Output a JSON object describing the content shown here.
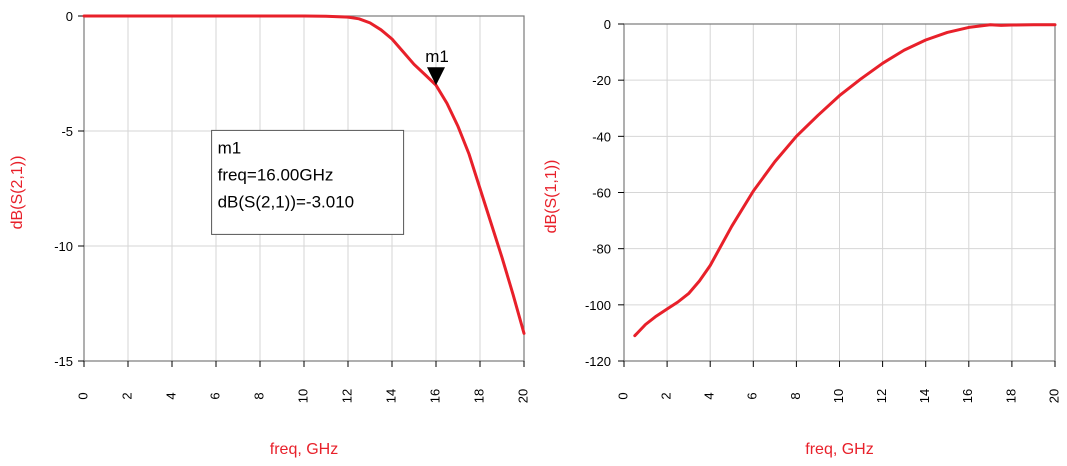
{
  "colors": {
    "trace": "#e8202a",
    "axis_title": "#e8202a",
    "grid": "#d6d6d6",
    "frame": "#7a7a7a",
    "marker": "#000000"
  },
  "chart_data": [
    {
      "type": "line",
      "xlabel": "freq, GHz",
      "ylabel": "dB(S(2,1))",
      "xlim": [
        0,
        20
      ],
      "ylim": [
        -15,
        0
      ],
      "xticks": [
        0,
        2,
        4,
        6,
        8,
        10,
        12,
        14,
        16,
        18,
        20
      ],
      "yticks": [
        0,
        -5,
        -10,
        -15
      ],
      "grid": true,
      "series": [
        {
          "x": [
            0,
            2,
            4,
            6,
            8,
            10,
            11,
            12,
            12.5,
            13,
            13.5,
            14,
            14.5,
            15,
            15.5,
            16,
            16.5,
            17,
            17.5,
            18,
            18.5,
            19,
            19.5,
            20
          ],
          "y": [
            0,
            0,
            0,
            0,
            0,
            0,
            -0.01,
            -0.05,
            -0.12,
            -0.3,
            -0.6,
            -1.0,
            -1.55,
            -2.1,
            -2.55,
            -3.01,
            -3.8,
            -4.8,
            -6.0,
            -7.5,
            -9.0,
            -10.5,
            -12.1,
            -13.8
          ]
        }
      ],
      "marker": {
        "name": "m1",
        "x": 16,
        "y": -3.01,
        "legend_lines": [
          "m1",
          "freq=16.00GHz",
          "dB(S(2,1))=-3.010"
        ],
        "legend_anchor": [
          5.8,
          -6.8
        ]
      }
    },
    {
      "type": "line",
      "xlabel": "freq, GHz",
      "ylabel": "dB(S(1,1))",
      "xlim": [
        0,
        20
      ],
      "ylim": [
        -120,
        0
      ],
      "xticks": [
        0,
        2,
        4,
        6,
        8,
        10,
        12,
        14,
        16,
        18,
        20
      ],
      "yticks": [
        0,
        -20,
        -40,
        -60,
        -80,
        -100,
        -120
      ],
      "grid": true,
      "series": [
        {
          "x": [
            0.5,
            1,
            1.5,
            2,
            2.5,
            3,
            3.5,
            4,
            5,
            6,
            7,
            8,
            9,
            10,
            11,
            12,
            13,
            14,
            15,
            16,
            17,
            17.5,
            18,
            19,
            20
          ],
          "y": [
            -111,
            -107,
            -104,
            -101.5,
            -99,
            -96,
            -91.5,
            -86,
            -72,
            -59.5,
            -49,
            -40,
            -32.5,
            -25.5,
            -19.5,
            -14,
            -9.3,
            -5.7,
            -3,
            -1.2,
            -0.3,
            -0.5,
            -0.35,
            -0.3,
            -0.3
          ]
        }
      ]
    }
  ]
}
